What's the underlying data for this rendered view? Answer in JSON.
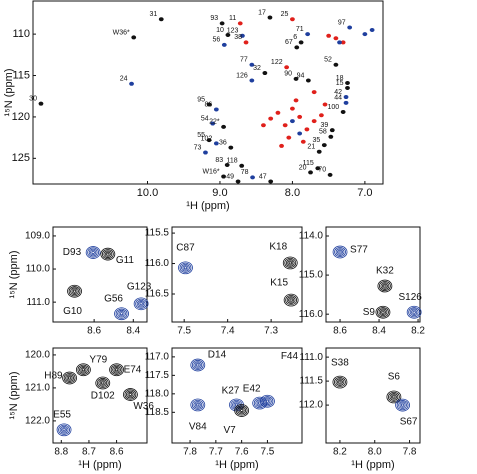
{
  "chart_data": [
    {
      "type": "scatter",
      "xlabel": "¹H (ppm)",
      "ylabel": "¹⁵N (ppm)",
      "xlim": [
        11.58,
        6.75
      ],
      "ylim": [
        106.0,
        128.1
      ],
      "xticks": [
        {
          "value": 10,
          "label": "10.0"
        },
        {
          "value": 9,
          "label": "9.0"
        },
        {
          "value": 8,
          "label": "8.0"
        },
        {
          "value": 7,
          "label": "7.0"
        }
      ],
      "yticks": [
        110,
        115,
        120,
        125
      ],
      "x": [
        9.81,
        10.19,
        10.22,
        11.47,
        8.31,
        8.97,
        8.72,
        8.0,
        7.21,
        7.79,
        8.89,
        8.69,
        8.94,
        8.64,
        7.88,
        7.94,
        7.4,
        8.56,
        8.08,
        8.38,
        8.56,
        7.24,
        7.95,
        7.78,
        7.24,
        7.26,
        7.26,
        7.3,
        7.45,
        7.47,
        7.56,
        7.63,
        7.65,
        7.75,
        7.48,
        9.15,
        9.05,
        9.1,
        8.95,
        9.15,
        9.05,
        8.85,
        9.2,
        8.9,
        8.7,
        8.75,
        8.55,
        8.3,
        8.95,
        8.0,
        7.9,
        8.1,
        7.8,
        8.2,
        7.7,
        8.05,
        7.95,
        8.3,
        7.6,
        7.4,
        7.3,
        7.5,
        7.7,
        8.15,
        7.85,
        8.4,
        7.55,
        7.0,
        6.9,
        7.35,
        8.0,
        7.9
      ],
      "values": [
        108.2,
        110.4,
        116.0,
        118.4,
        108.0,
        108.7,
        108.7,
        108.2,
        109.2,
        110.0,
        110.1,
        110.2,
        111.3,
        111.0,
        111.0,
        111.6,
        113.7,
        113.7,
        114.0,
        114.7,
        115.6,
        115.9,
        115.4,
        115.6,
        116.5,
        117.6,
        118.3,
        119.4,
        121.6,
        122.4,
        123.4,
        124.2,
        126.2,
        126.7,
        127.0,
        118.5,
        119.1,
        120.8,
        121.2,
        122.8,
        123.2,
        123.7,
        124.3,
        125.8,
        125.9,
        127.8,
        127.3,
        127.8,
        127.2,
        119.0,
        120.0,
        121.0,
        121.5,
        119.5,
        120.5,
        122.5,
        118.0,
        120.2,
        119.8,
        110.5,
        111.0,
        110.2,
        117.0,
        123.5,
        123.0,
        121.0,
        118.5,
        110.0,
        109.5,
        111.0,
        120.5,
        122.0
      ],
      "labels": [
        "31",
        "W36*",
        "24",
        "30",
        "17",
        "93",
        "11",
        "25",
        "97",
        "71",
        "10",
        "123",
        "56",
        "38",
        "6",
        "67",
        "52",
        "77",
        "122",
        "32",
        "126",
        "18",
        "90",
        "94",
        "15",
        "42",
        "44",
        "100",
        "39",
        "58",
        "35",
        "21",
        "115",
        "20",
        "70",
        "95",
        "86",
        "54",
        "22*",
        "55",
        "102",
        "36",
        "73",
        "83",
        "118",
        "49",
        "78",
        "47",
        "W16*",
        null,
        null,
        null,
        null,
        null,
        null,
        null,
        null,
        null,
        null,
        null,
        null,
        null,
        null,
        null,
        null,
        null,
        null,
        null,
        null,
        null,
        null,
        null
      ],
      "colors": [
        "#111111",
        "#111111",
        "#1f3f9e",
        "#111111",
        "#111111",
        "#111111",
        "#e0201b",
        "#e0201b",
        "#1f3f9e",
        "#1f3f9e",
        "#111111",
        "#1f3f9e",
        "#1f3f9e",
        "#e0201b",
        "#111111",
        "#111111",
        "#111111",
        "#1f3f9e",
        "#e0201b",
        "#111111",
        "#1f3f9e",
        "#111111",
        "#111111",
        "#111111",
        "#111111",
        "#1f3f9e",
        "#1f3f9e",
        "#111111",
        "#111111",
        "#111111",
        "#111111",
        "#111111",
        "#111111",
        "#111111",
        "#111111",
        "#111111",
        "#1f3f9e",
        "#1f3f9e",
        "#111111",
        "#111111",
        "#1f3f9e",
        "#111111",
        "#1f3f9e",
        "#111111",
        "#111111",
        "#111111",
        "#1f3f9e",
        "#111111",
        "#111111",
        "#e0201b",
        "#e0201b",
        "#e0201b",
        "#e0201b",
        "#e0201b",
        "#e0201b",
        "#e0201b",
        "#e0201b",
        "#e0201b",
        "#e0201b",
        "#e0201b",
        "#e0201b",
        "#e0201b",
        "#e0201b",
        "#e0201b",
        "#e0201b",
        "#e0201b",
        "#e0201b",
        "#1f3f9e",
        "#1f3f9e",
        "#1f3f9e",
        "#1f3f9e",
        "#1f3f9e"
      ]
    },
    {
      "type": "contour",
      "ylabel": "¹⁵N (ppm)",
      "xlim": [
        8.81,
        8.33
      ],
      "ylim": [
        108.73,
        111.6
      ],
      "xticks": [
        8.6,
        8.4
      ],
      "yticks": [
        {
          "value": 109,
          "label": "109.0"
        },
        {
          "value": 110,
          "label": "110.0"
        },
        {
          "value": 111,
          "label": "111.0"
        }
      ],
      "x": [
        8.605,
        8.53,
        8.7,
        8.46,
        8.36
      ],
      "values": [
        109.5,
        109.55,
        110.67,
        111.35,
        111.05
      ],
      "labels": [
        "D93",
        "G11",
        "G10",
        "G56",
        "G123"
      ],
      "colors": [
        "#1f3f9e",
        "#111111",
        "#111111",
        "#1f3f9e",
        "#1f3f9e"
      ]
    },
    {
      "type": "contour",
      "xlim": [
        7.528,
        7.229
      ],
      "ylim": [
        115.4,
        116.96
      ],
      "xticks": [
        7.5,
        7.4,
        7.3
      ],
      "yticks": [
        115.5,
        {
          "value": 116,
          "label": "116.0"
        },
        116.5
      ],
      "x": [
        7.497,
        7.256,
        7.254
      ],
      "values": [
        116.07,
        115.99,
        116.6
      ],
      "labels": [
        "C87",
        "K18",
        "K15"
      ],
      "colors": [
        "#1f3f9e",
        "#111111",
        "#111111"
      ]
    },
    {
      "type": "contour",
      "xlim": [
        8.672,
        8.19
      ],
      "ylim": [
        113.77,
        116.2
      ],
      "xticks": [
        8.6,
        8.4,
        8.2
      ],
      "yticks": [
        {
          "value": 114,
          "label": "114.0"
        },
        {
          "value": 115,
          "label": "115.0"
        },
        {
          "value": 116,
          "label": "116.0"
        }
      ],
      "x": [
        8.6,
        8.37,
        8.38,
        8.22
      ],
      "values": [
        114.41,
        115.28,
        115.95,
        115.95
      ],
      "labels": [
        "S77",
        "K32",
        "S9",
        "S126"
      ],
      "colors": [
        "#1f3f9e",
        "#111111",
        "#111111",
        "#1f3f9e"
      ]
    },
    {
      "type": "contour",
      "xlabel": "¹H (ppm)",
      "ylabel": "¹⁵N (ppm)",
      "xlim": [
        8.83,
        8.49
      ],
      "ylim": [
        119.79,
        122.67
      ],
      "xticks": [
        8.8,
        8.7,
        8.6
      ],
      "yticks": [
        {
          "value": 120,
          "label": "120.0"
        },
        {
          "value": 121,
          "label": "121.0"
        },
        {
          "value": 122,
          "label": "122.0"
        }
      ],
      "x": [
        8.77,
        8.72,
        8.6,
        8.65,
        8.55,
        8.79
      ],
      "values": [
        120.7,
        120.45,
        120.45,
        120.85,
        121.2,
        122.27
      ],
      "labels": [
        "H89",
        "Y79",
        "E74",
        "D102",
        "W36",
        "E55"
      ],
      "colors": [
        "#111111",
        "#111111",
        "#111111",
        "#111111",
        "#111111",
        "#1f3f9e"
      ]
    },
    {
      "type": "contour",
      "xlabel": "¹H (ppm)",
      "xlim": [
        7.87,
        7.366
      ],
      "ylim": [
        116.76,
        119.33
      ],
      "xticks": [
        7.8,
        7.7,
        7.6,
        7.5
      ],
      "yticks": [
        {
          "value": 117,
          "label": "117.0"
        },
        117.5,
        {
          "value": 118,
          "label": "118.0"
        },
        118.5
      ],
      "x": [
        7.77,
        7.77,
        7.62,
        7.53,
        7.5,
        7.6
      ],
      "values": [
        117.22,
        118.3,
        118.3,
        118.25,
        118.2,
        118.45
      ],
      "labels": [
        "D14",
        "V84",
        "K27",
        "E42",
        "F44",
        "V7"
      ],
      "colors": [
        "#1f3f9e",
        "#1f3f9e",
        "#1f3f9e",
        "#1f3f9e",
        "#1f3f9e",
        "#111111"
      ]
    },
    {
      "type": "contour",
      "xlabel": "¹H (ppm)",
      "xlim": [
        8.28,
        7.74
      ],
      "ylim": [
        110.81,
        112.79
      ],
      "xticks": [
        8.2,
        {
          "value": 8,
          "label": "8.0"
        },
        7.8
      ],
      "yticks": [
        {
          "value": 111,
          "label": "111.0"
        },
        111.5,
        {
          "value": 112,
          "label": "112.0"
        }
      ],
      "x": [
        8.2,
        7.89,
        7.84
      ],
      "values": [
        111.52,
        111.83,
        112.0
      ],
      "labels": [
        "S38",
        "S6",
        "S67"
      ],
      "colors": [
        "#111111",
        "#111111",
        "#1f3f9e"
      ]
    }
  ]
}
